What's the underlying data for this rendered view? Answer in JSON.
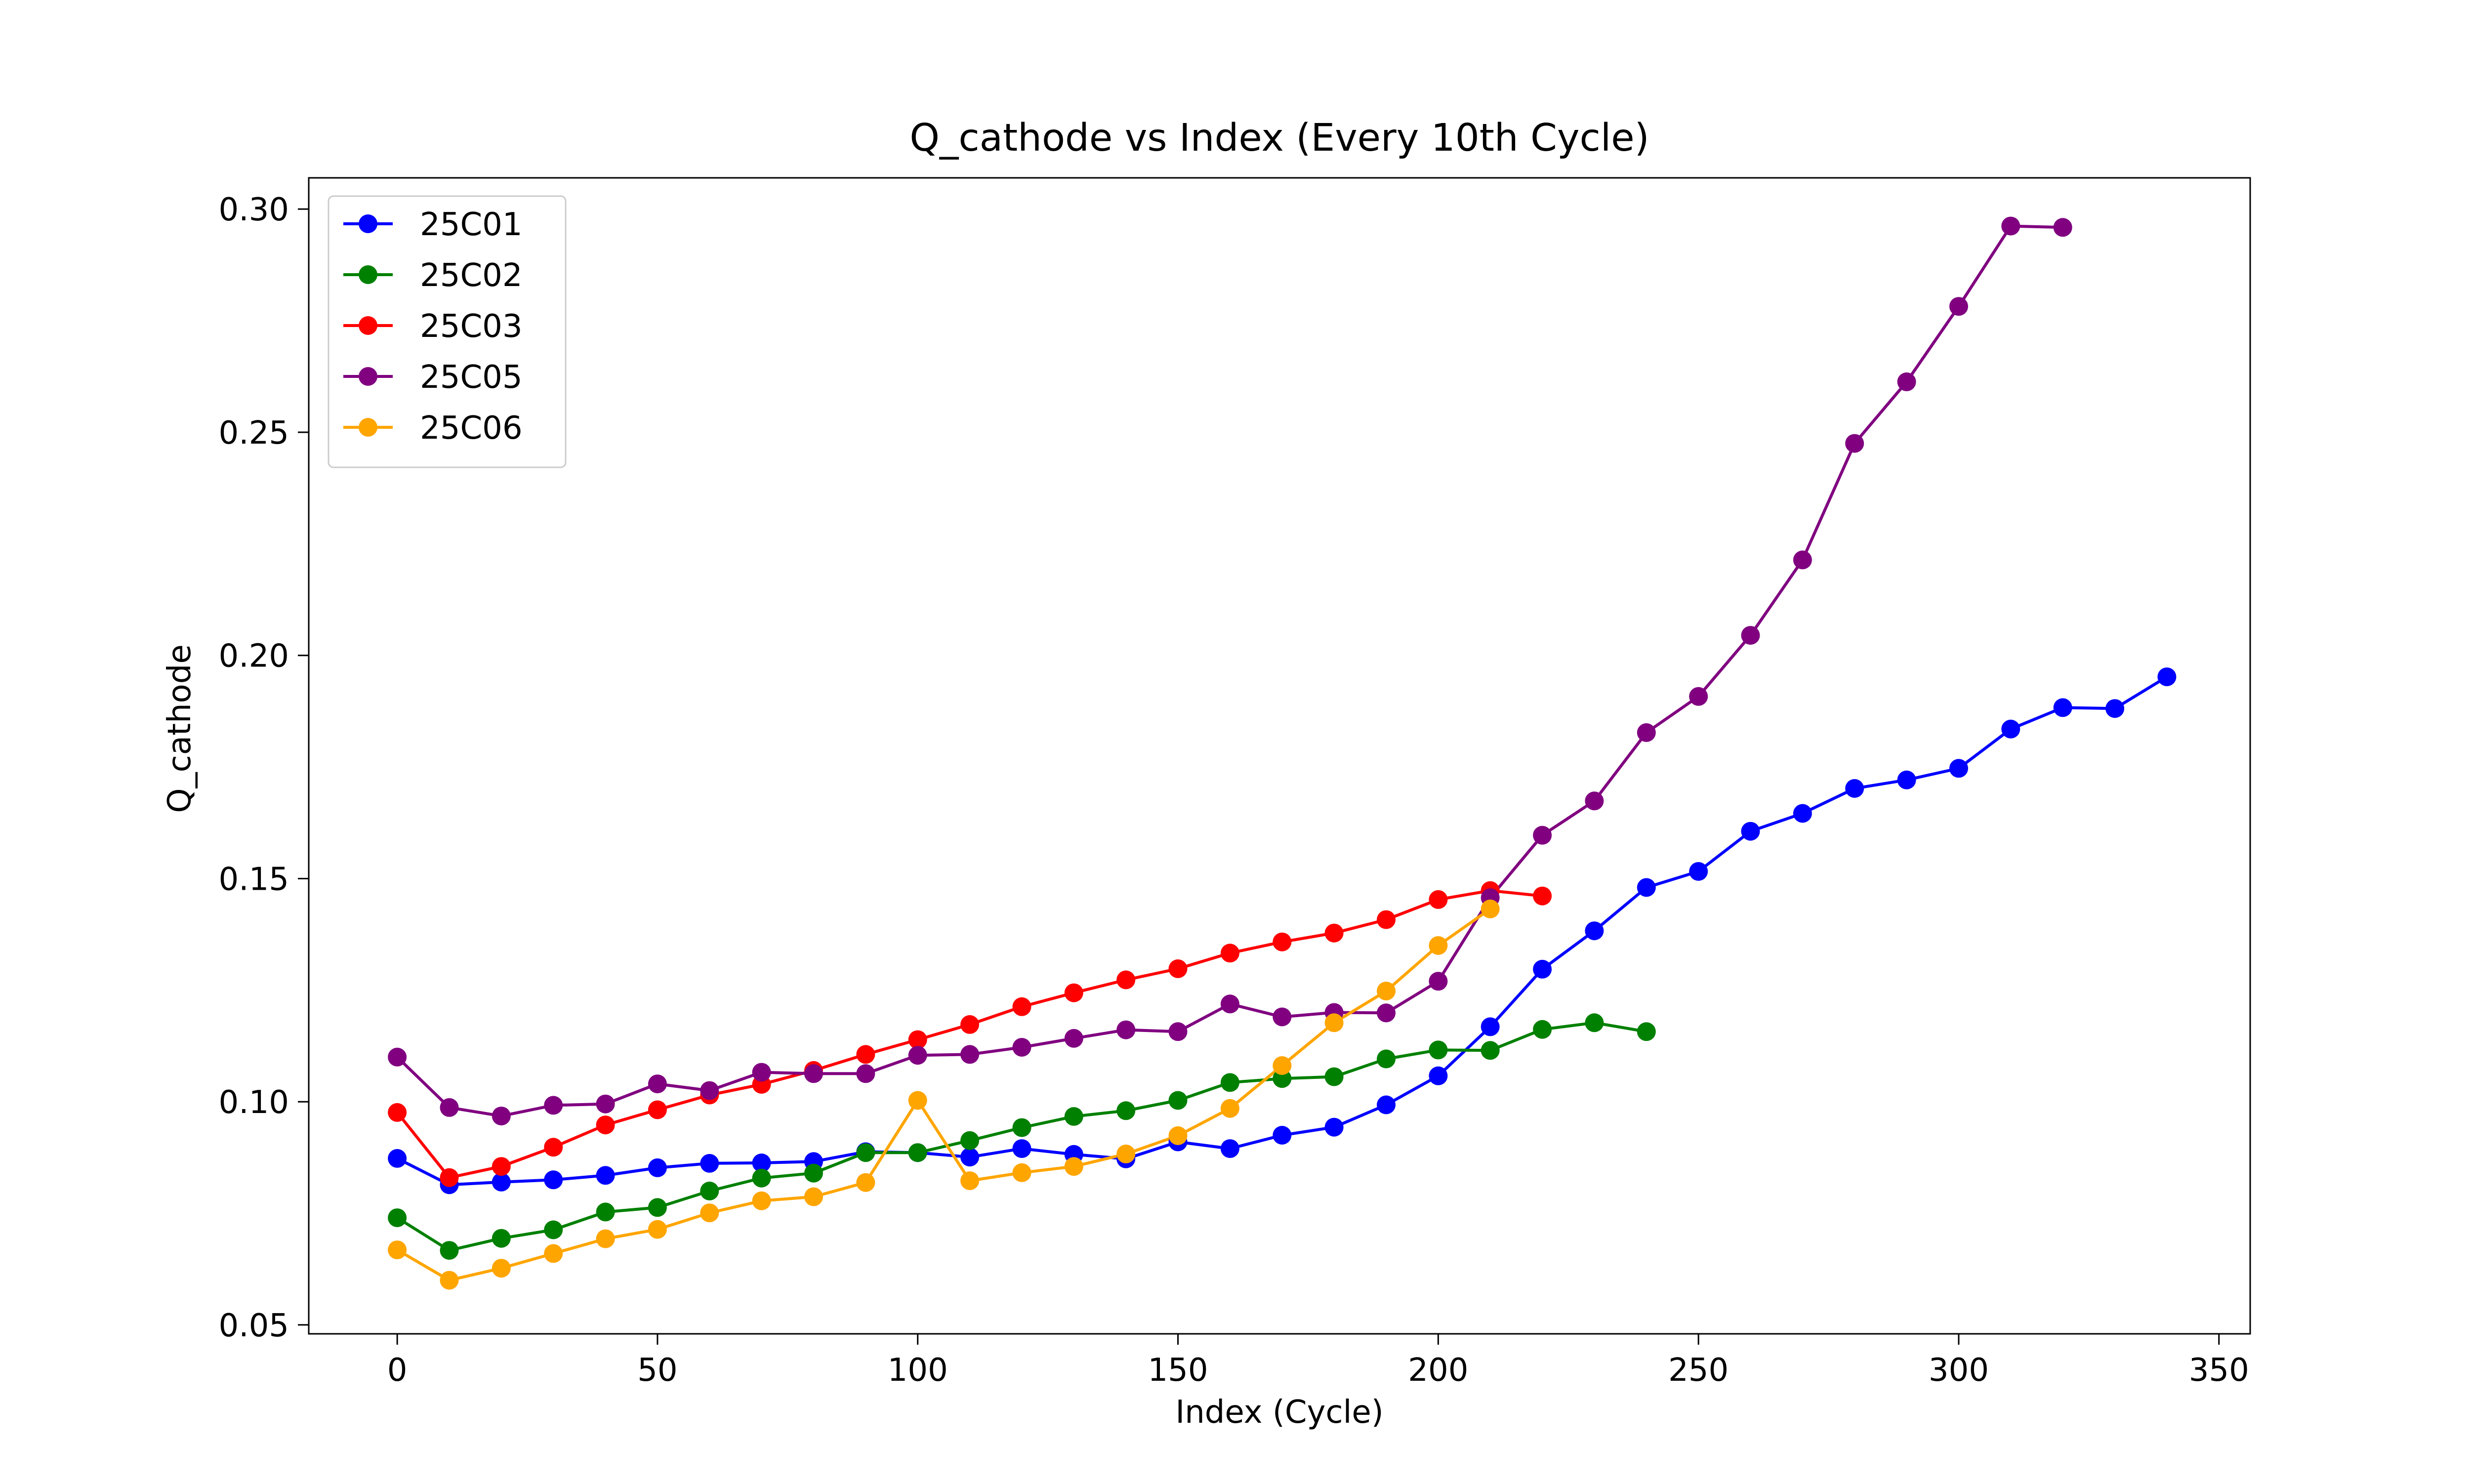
{
  "chart_data": {
    "type": "line",
    "title": "Q_cathode vs Index (Every 10th Cycle)",
    "xlabel": "Index (Cycle)",
    "ylabel": "Q_cathode",
    "xlim": [
      -17,
      356
    ],
    "ylim": [
      0.048,
      0.307
    ],
    "x_ticks": [
      0,
      50,
      100,
      150,
      200,
      250,
      300,
      350
    ],
    "x_tick_labels": [
      "0",
      "50",
      "100",
      "150",
      "200",
      "250",
      "300",
      "350"
    ],
    "y_ticks": [
      0.05,
      0.1,
      0.15,
      0.2,
      0.25,
      0.3
    ],
    "y_tick_labels": [
      "0.05",
      "0.10",
      "0.15",
      "0.20",
      "0.25",
      "0.30"
    ],
    "grid": false,
    "legend_position": "top-left",
    "series": [
      {
        "name": "25C01",
        "color": "#0000ff",
        "x": [
          0,
          10,
          20,
          30,
          40,
          50,
          60,
          70,
          80,
          90,
          100,
          110,
          120,
          130,
          140,
          150,
          160,
          170,
          180,
          190,
          200,
          210,
          220,
          230,
          240,
          250,
          260,
          270,
          280,
          290,
          300,
          310,
          320,
          330,
          340
        ],
        "y": [
          0.0873,
          0.0814,
          0.082,
          0.0825,
          0.0835,
          0.0852,
          0.0862,
          0.0863,
          0.0866,
          0.0888,
          0.0886,
          0.0876,
          0.0895,
          0.0882,
          0.0872,
          0.091,
          0.0895,
          0.0925,
          0.0943,
          0.0993,
          0.1058,
          0.1168,
          0.1297,
          0.1383,
          0.148,
          0.1516,
          0.1606,
          0.1646,
          0.1702,
          0.1721,
          0.1747,
          0.1835,
          0.1883,
          0.1881,
          0.1952
        ]
      },
      {
        "name": "25C02",
        "color": "#008000",
        "x": [
          0,
          10,
          20,
          30,
          40,
          50,
          60,
          70,
          80,
          90,
          100,
          110,
          120,
          130,
          140,
          150,
          160,
          170,
          180,
          190,
          200,
          210,
          220,
          230,
          240
        ],
        "y": [
          0.074,
          0.0667,
          0.0694,
          0.0713,
          0.0753,
          0.0763,
          0.08,
          0.0829,
          0.084,
          0.0886,
          0.0886,
          0.0913,
          0.0942,
          0.0967,
          0.098,
          0.1003,
          0.1043,
          0.1052,
          0.1056,
          0.1096,
          0.1116,
          0.1115,
          0.1162,
          0.1177,
          0.1157
        ]
      },
      {
        "name": "25C03",
        "color": "#ff0000",
        "x": [
          0,
          10,
          20,
          30,
          40,
          50,
          60,
          70,
          80,
          90,
          100,
          110,
          120,
          130,
          140,
          150,
          160,
          170,
          180,
          190,
          200,
          210,
          220
        ],
        "y": [
          0.0976,
          0.083,
          0.0855,
          0.0898,
          0.0948,
          0.0982,
          0.1015,
          0.1039,
          0.107,
          0.1106,
          0.1139,
          0.1173,
          0.1213,
          0.1244,
          0.1273,
          0.1298,
          0.1333,
          0.1358,
          0.1378,
          0.1408,
          0.1453,
          0.1473,
          0.1461
        ]
      },
      {
        "name": "25C05",
        "color": "#800080",
        "x": [
          0,
          10,
          20,
          30,
          40,
          50,
          60,
          70,
          80,
          90,
          100,
          110,
          120,
          130,
          140,
          150,
          160,
          170,
          180,
          190,
          200,
          210,
          220,
          230,
          240,
          250,
          260,
          270,
          280,
          290,
          300,
          310,
          320
        ],
        "y": [
          0.11,
          0.0987,
          0.0968,
          0.0992,
          0.0995,
          0.104,
          0.1025,
          0.1066,
          0.1063,
          0.1063,
          0.1104,
          0.1106,
          0.1122,
          0.1142,
          0.1161,
          0.1157,
          0.1219,
          0.119,
          0.12,
          0.1199,
          0.127,
          0.1457,
          0.1597,
          0.1674,
          0.1827,
          0.1908,
          0.2045,
          0.2214,
          0.2475,
          0.2613,
          0.2782,
          0.2962,
          0.2959
        ]
      },
      {
        "name": "25C06",
        "color": "#ffa500",
        "x": [
          0,
          10,
          20,
          30,
          40,
          50,
          60,
          70,
          80,
          90,
          100,
          110,
          120,
          130,
          140,
          150,
          160,
          170,
          180,
          190,
          200,
          210
        ],
        "y": [
          0.0668,
          0.06,
          0.0627,
          0.066,
          0.0693,
          0.0714,
          0.0751,
          0.0778,
          0.0787,
          0.0819,
          0.1003,
          0.0823,
          0.0841,
          0.0855,
          0.0883,
          0.0924,
          0.0985,
          0.1081,
          0.1177,
          0.1248,
          0.135,
          0.1432
        ]
      }
    ]
  }
}
